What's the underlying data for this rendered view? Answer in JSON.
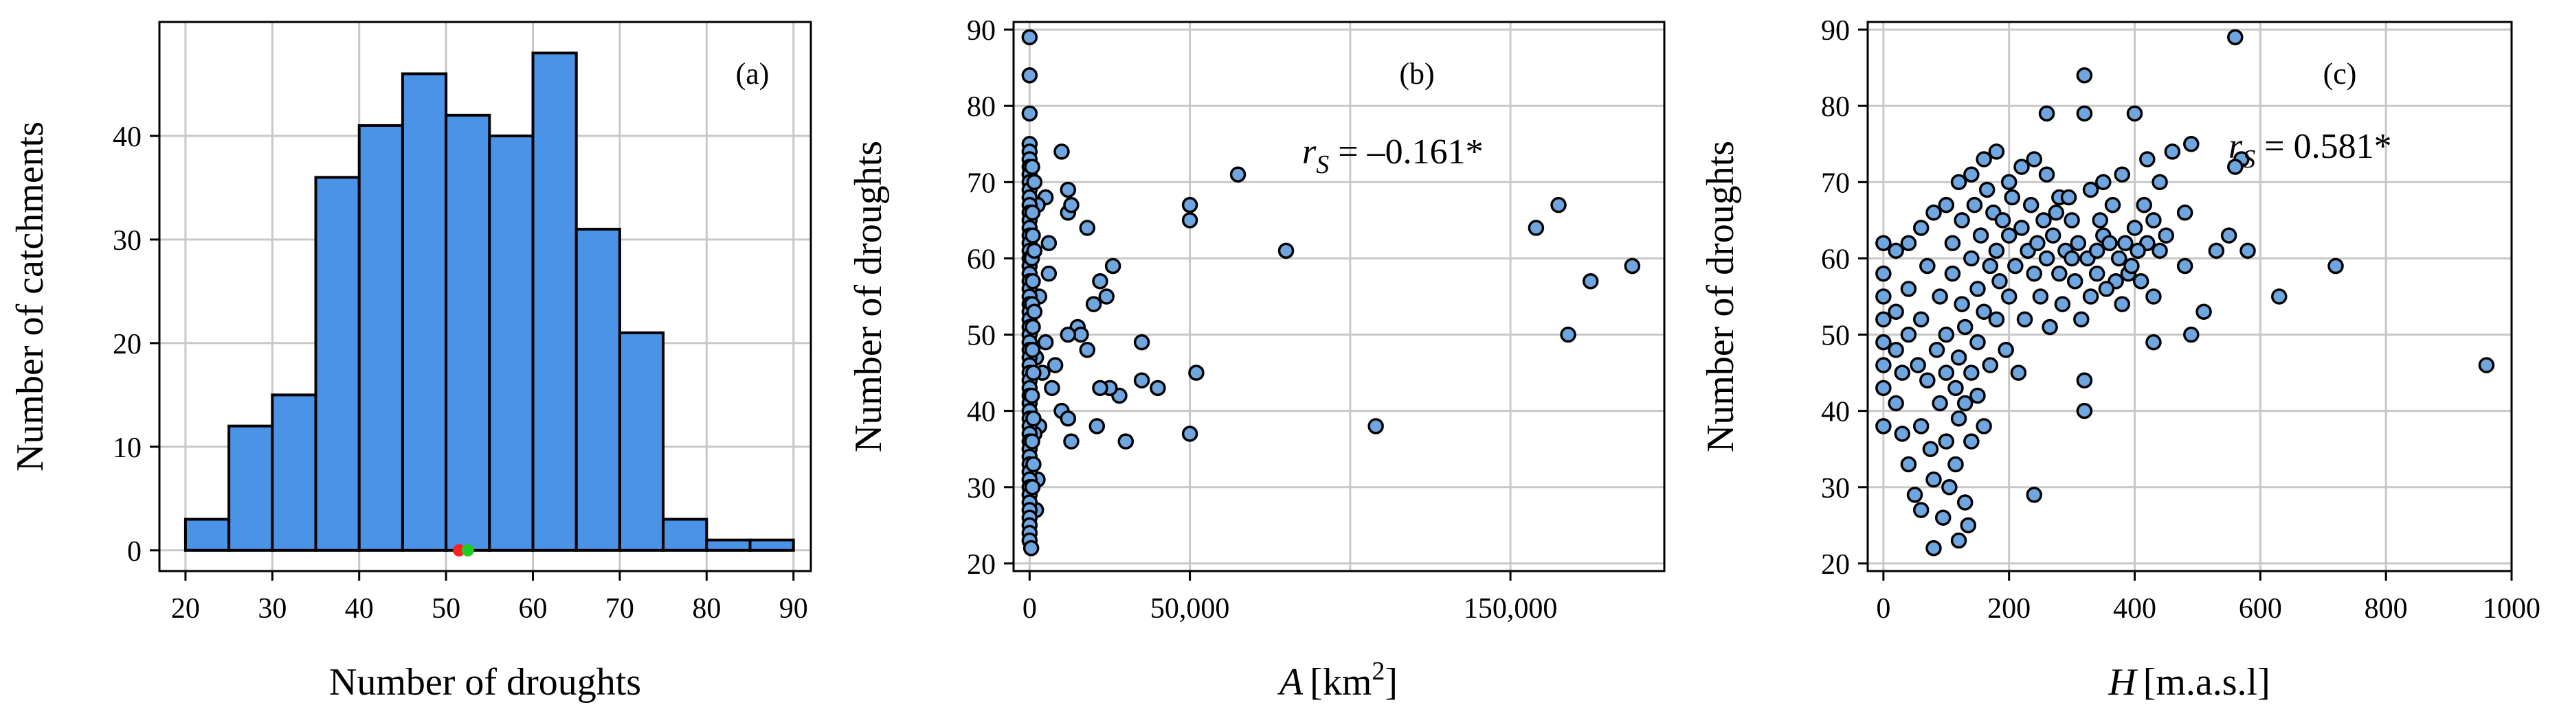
{
  "chart_data": [
    {
      "type": "bar",
      "panel_label": "(a)",
      "xlabel": "Number of droughts",
      "ylabel": "Number of catchments",
      "bin_edges": [
        20,
        25,
        30,
        35,
        40,
        45,
        50,
        55,
        60,
        65,
        70,
        75,
        80,
        85,
        90
      ],
      "values": [
        3,
        12,
        15,
        36,
        41,
        46,
        42,
        40,
        48,
        31,
        21,
        3,
        1,
        1
      ],
      "xlim": [
        17,
        92
      ],
      "ylim": [
        -2,
        51
      ],
      "xticks": [
        20,
        30,
        40,
        50,
        60,
        70,
        80,
        90
      ],
      "yticks": [
        0,
        10,
        20,
        30,
        40
      ],
      "xtick_labels": [
        "20",
        "30",
        "40",
        "50",
        "60",
        "70",
        "80",
        "90"
      ],
      "ytick_labels": [
        "0",
        "10",
        "20",
        "30",
        "40"
      ],
      "markers": [
        {
          "x": 51.5,
          "y": 0,
          "color": "#ff2020"
        },
        {
          "x": 52.5,
          "y": 0,
          "color": "#22cc22"
        }
      ],
      "grid": true
    },
    {
      "type": "scatter",
      "panel_label": "(b)",
      "xlabel_italic": "A",
      "xlabel_unit": "[km",
      "xlabel_sup": "2",
      "xlabel_close": "]",
      "ylabel": "Number of droughts",
      "annotation_r": "r",
      "annotation_sub": "S",
      "annotation_value": " = –0.161*",
      "xlim": [
        -5000,
        198000
      ],
      "ylim": [
        19,
        91
      ],
      "grid_x": [
        0,
        50000,
        100000,
        150000
      ],
      "xticks": [
        0,
        50000,
        150000
      ],
      "xtick_labels": [
        "0",
        "50,000",
        "150,000"
      ],
      "yticks": [
        20,
        30,
        40,
        50,
        60,
        70,
        80,
        90
      ],
      "ytick_labels": [
        "20",
        "30",
        "40",
        "50",
        "60",
        "70",
        "80",
        "90"
      ],
      "points": [
        [
          65000,
          71
        ],
        [
          80000,
          61
        ],
        [
          108000,
          38
        ],
        [
          158000,
          64
        ],
        [
          165000,
          67
        ],
        [
          168000,
          50
        ],
        [
          175000,
          57
        ],
        [
          188000,
          59
        ],
        [
          50000,
          65
        ],
        [
          50000,
          67
        ],
        [
          52000,
          45
        ],
        [
          50000,
          37
        ],
        [
          40000,
          43
        ],
        [
          35000,
          44
        ],
        [
          35000,
          49
        ],
        [
          30000,
          36
        ],
        [
          28000,
          42
        ],
        [
          25000,
          43
        ],
        [
          24000,
          55
        ],
        [
          26000,
          59
        ],
        [
          22000,
          57
        ],
        [
          20000,
          54
        ],
        [
          22000,
          43
        ],
        [
          21000,
          38
        ],
        [
          18000,
          48
        ],
        [
          15000,
          51
        ],
        [
          16000,
          50
        ],
        [
          18000,
          64
        ],
        [
          12000,
          66
        ],
        [
          12000,
          69
        ],
        [
          13000,
          67
        ],
        [
          10000,
          74
        ],
        [
          12000,
          50
        ],
        [
          10000,
          40
        ],
        [
          12000,
          39
        ],
        [
          13000,
          36
        ],
        [
          8000,
          46
        ],
        [
          7000,
          43
        ],
        [
          6000,
          58
        ],
        [
          5000,
          49
        ],
        [
          5000,
          68
        ],
        [
          6000,
          62
        ],
        [
          4000,
          45
        ],
        [
          3000,
          55
        ],
        [
          2500,
          67
        ],
        [
          2000,
          47
        ],
        [
          3000,
          38
        ],
        [
          2500,
          31
        ],
        [
          2000,
          27
        ],
        [
          1500,
          37
        ],
        [
          0,
          89
        ],
        [
          0,
          84
        ],
        [
          0,
          79
        ],
        [
          0,
          75
        ],
        [
          0,
          74
        ],
        [
          0,
          73
        ],
        [
          0,
          72
        ],
        [
          0,
          71
        ],
        [
          0,
          70
        ],
        [
          0,
          69
        ],
        [
          0,
          68
        ],
        [
          0,
          67
        ],
        [
          0,
          66
        ],
        [
          0,
          65
        ],
        [
          0,
          64
        ],
        [
          0,
          63
        ],
        [
          0,
          62
        ],
        [
          0,
          61
        ],
        [
          0,
          60
        ],
        [
          0,
          59
        ],
        [
          0,
          58
        ],
        [
          0,
          57
        ],
        [
          0,
          56
        ],
        [
          0,
          55
        ],
        [
          0,
          54
        ],
        [
          0,
          53
        ],
        [
          0,
          52
        ],
        [
          0,
          51
        ],
        [
          0,
          50
        ],
        [
          0,
          49
        ],
        [
          0,
          48
        ],
        [
          0,
          47
        ],
        [
          0,
          46
        ],
        [
          0,
          45
        ],
        [
          0,
          44
        ],
        [
          0,
          43
        ],
        [
          0,
          42
        ],
        [
          0,
          41
        ],
        [
          0,
          40
        ],
        [
          0,
          39
        ],
        [
          0,
          38
        ],
        [
          0,
          37
        ],
        [
          0,
          36
        ],
        [
          0,
          35
        ],
        [
          0,
          34
        ],
        [
          0,
          33
        ],
        [
          0,
          32
        ],
        [
          0,
          31
        ],
        [
          0,
          30
        ],
        [
          0,
          29
        ],
        [
          0,
          28
        ],
        [
          0,
          27
        ],
        [
          0,
          26
        ],
        [
          0,
          25
        ],
        [
          0,
          24
        ],
        [
          0,
          23
        ],
        [
          500,
          22
        ],
        [
          800,
          72
        ],
        [
          900,
          66
        ],
        [
          700,
          60
        ],
        [
          800,
          54
        ],
        [
          900,
          48
        ],
        [
          700,
          42
        ],
        [
          800,
          36
        ],
        [
          900,
          30
        ],
        [
          1000,
          63
        ],
        [
          1000,
          57
        ],
        [
          1000,
          51
        ],
        [
          1200,
          45
        ],
        [
          1200,
          39
        ],
        [
          1200,
          33
        ],
        [
          1500,
          70
        ],
        [
          1500,
          61
        ],
        [
          1500,
          53
        ]
      ],
      "grid": true
    },
    {
      "type": "scatter",
      "panel_label": "(c)",
      "xlabel_italic": "H",
      "xlabel_unit": "[m.a.s.l]",
      "ylabel": "Number of droughts",
      "annotation_r": "r",
      "annotation_sub": "S",
      "annotation_value": " = 0.581*",
      "xlim": [
        -25,
        1000
      ],
      "ylim": [
        19,
        91
      ],
      "xticks": [
        0,
        200,
        400,
        600,
        800,
        1000
      ],
      "xtick_labels": [
        "0",
        "200",
        "400",
        "600",
        "800",
        "1000"
      ],
      "yticks": [
        20,
        30,
        40,
        50,
        60,
        70,
        80,
        90
      ],
      "ytick_labels": [
        "20",
        "30",
        "40",
        "50",
        "60",
        "70",
        "80",
        "90"
      ],
      "points": [
        [
          560,
          89
        ],
        [
          320,
          84
        ],
        [
          260,
          79
        ],
        [
          320,
          79
        ],
        [
          400,
          79
        ],
        [
          490,
          75
        ],
        [
          420,
          73
        ],
        [
          570,
          73
        ],
        [
          560,
          72
        ],
        [
          460,
          74
        ],
        [
          380,
          71
        ],
        [
          350,
          70
        ],
        [
          330,
          69
        ],
        [
          480,
          66
        ],
        [
          430,
          65
        ],
        [
          400,
          64
        ],
        [
          350,
          63
        ],
        [
          420,
          62
        ],
        [
          440,
          61
        ],
        [
          530,
          61
        ],
        [
          580,
          61
        ],
        [
          480,
          59
        ],
        [
          720,
          59
        ],
        [
          430,
          55
        ],
        [
          630,
          55
        ],
        [
          510,
          53
        ],
        [
          370,
          57
        ],
        [
          490,
          50
        ],
        [
          430,
          49
        ],
        [
          320,
          44
        ],
        [
          320,
          40
        ],
        [
          240,
          29
        ],
        [
          960,
          46
        ],
        [
          550,
          63
        ],
        [
          390,
          58
        ],
        [
          340,
          58
        ],
        [
          300,
          65
        ],
        [
          280,
          68
        ],
        [
          260,
          71
        ],
        [
          240,
          73
        ],
        [
          220,
          72
        ],
        [
          200,
          70
        ],
        [
          180,
          74
        ],
        [
          160,
          73
        ],
        [
          140,
          71
        ],
        [
          120,
          70
        ],
        [
          100,
          67
        ],
        [
          80,
          66
        ],
        [
          60,
          64
        ],
        [
          40,
          62
        ],
        [
          20,
          61
        ],
        [
          0,
          62
        ],
        [
          0,
          58
        ],
        [
          0,
          55
        ],
        [
          0,
          52
        ],
        [
          0,
          49
        ],
        [
          0,
          46
        ],
        [
          0,
          43
        ],
        [
          0,
          38
        ],
        [
          20,
          48
        ],
        [
          20,
          53
        ],
        [
          20,
          41
        ],
        [
          30,
          45
        ],
        [
          30,
          37
        ],
        [
          40,
          50
        ],
        [
          40,
          56
        ],
        [
          40,
          33
        ],
        [
          50,
          29
        ],
        [
          55,
          46
        ],
        [
          60,
          52
        ],
        [
          60,
          38
        ],
        [
          60,
          27
        ],
        [
          70,
          59
        ],
        [
          70,
          44
        ],
        [
          75,
          35
        ],
        [
          80,
          22
        ],
        [
          80,
          31
        ],
        [
          85,
          48
        ],
        [
          90,
          55
        ],
        [
          90,
          41
        ],
        [
          95,
          26
        ],
        [
          100,
          45
        ],
        [
          100,
          50
        ],
        [
          100,
          36
        ],
        [
          105,
          30
        ],
        [
          110,
          58
        ],
        [
          110,
          62
        ],
        [
          115,
          43
        ],
        [
          115,
          33
        ],
        [
          120,
          47
        ],
        [
          120,
          39
        ],
        [
          120,
          23
        ],
        [
          125,
          65
        ],
        [
          125,
          54
        ],
        [
          130,
          51
        ],
        [
          130,
          28
        ],
        [
          130,
          41
        ],
        [
          135,
          25
        ],
        [
          140,
          60
        ],
        [
          140,
          45
        ],
        [
          140,
          36
        ],
        [
          145,
          67
        ],
        [
          150,
          56
        ],
        [
          150,
          49
        ],
        [
          150,
          42
        ],
        [
          155,
          63
        ],
        [
          160,
          53
        ],
        [
          160,
          38
        ],
        [
          165,
          69
        ],
        [
          170,
          59
        ],
        [
          170,
          46
        ],
        [
          175,
          66
        ],
        [
          180,
          52
        ],
        [
          180,
          61
        ],
        [
          185,
          57
        ],
        [
          190,
          65
        ],
        [
          195,
          48
        ],
        [
          200,
          63
        ],
        [
          200,
          55
        ],
        [
          205,
          68
        ],
        [
          210,
          59
        ],
        [
          215,
          45
        ],
        [
          220,
          64
        ],
        [
          225,
          52
        ],
        [
          230,
          61
        ],
        [
          235,
          67
        ],
        [
          240,
          58
        ],
        [
          245,
          62
        ],
        [
          250,
          55
        ],
        [
          255,
          65
        ],
        [
          260,
          60
        ],
        [
          265,
          51
        ],
        [
          270,
          63
        ],
        [
          275,
          66
        ],
        [
          280,
          58
        ],
        [
          285,
          54
        ],
        [
          290,
          61
        ],
        [
          295,
          68
        ],
        [
          300,
          60
        ],
        [
          305,
          57
        ],
        [
          310,
          62
        ],
        [
          315,
          52
        ],
        [
          325,
          60
        ],
        [
          330,
          55
        ],
        [
          340,
          61
        ],
        [
          345,
          65
        ],
        [
          355,
          56
        ],
        [
          360,
          62
        ],
        [
          365,
          67
        ],
        [
          375,
          60
        ],
        [
          380,
          54
        ],
        [
          385,
          62
        ],
        [
          395,
          59
        ],
        [
          405,
          61
        ],
        [
          410,
          57
        ],
        [
          415,
          67
        ],
        [
          440,
          70
        ],
        [
          450,
          63
        ]
      ],
      "grid": true
    }
  ]
}
